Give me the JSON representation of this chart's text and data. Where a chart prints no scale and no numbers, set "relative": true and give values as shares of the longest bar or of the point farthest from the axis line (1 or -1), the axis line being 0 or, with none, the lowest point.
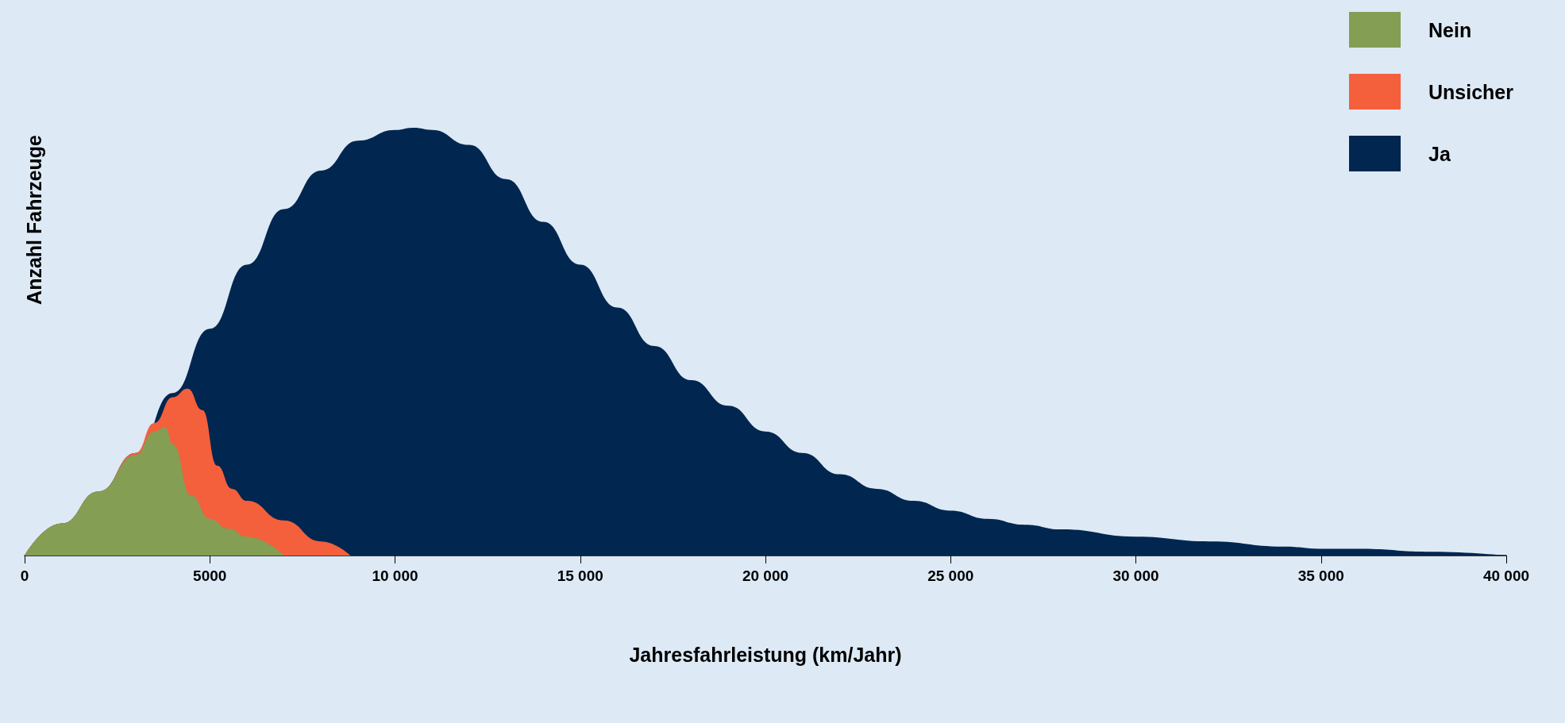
{
  "chart_data": {
    "type": "area",
    "relative": true,
    "xlabel": "Jahresfahrleistung (km/Jahr)",
    "ylabel": "Anzahl Fahrzeuge",
    "xlim": [
      0,
      40000
    ],
    "xticks": [
      0,
      5000,
      {
        "value": 10000,
        "label": "10 000"
      },
      {
        "value": 15000,
        "label": "15 000"
      },
      {
        "value": 20000,
        "label": "20 000"
      },
      {
        "value": 25000,
        "label": "25 000"
      },
      {
        "value": 30000,
        "label": "30 000"
      },
      {
        "value": 35000,
        "label": "35 000"
      },
      {
        "value": 40000,
        "label": "40 000"
      }
    ],
    "grid": false,
    "legend": "top right",
    "series": [
      {
        "name": "Nein",
        "color": "#849e54",
        "x": [
          0,
          1000,
          2000,
          3000,
          3500,
          3800,
          4000,
          4500,
          5000,
          5500,
          6000,
          7000
        ],
        "values": [
          0,
          0.075,
          0.15,
          0.235,
          0.29,
          0.3,
          0.26,
          0.14,
          0.086,
          0.063,
          0.044,
          0
        ]
      },
      {
        "name": "Unsicher",
        "color": "#f45f3c",
        "x": [
          0,
          1000,
          2000,
          3000,
          3500,
          4000,
          4400,
          4800,
          5200,
          5600,
          6000,
          7000,
          8000,
          8800
        ],
        "values": [
          0,
          0.075,
          0.15,
          0.24,
          0.31,
          0.37,
          0.39,
          0.34,
          0.21,
          0.156,
          0.128,
          0.082,
          0.033,
          0
        ]
      },
      {
        "name": "Ja",
        "color": "#01264f",
        "x": [
          0,
          1000,
          2000,
          3000,
          4000,
          5000,
          6000,
          7000,
          8000,
          9000,
          10000,
          10500,
          11000,
          12000,
          13000,
          14000,
          15000,
          16000,
          17000,
          18000,
          19000,
          20000,
          21000,
          22000,
          23000,
          24000,
          25000,
          26000,
          27000,
          28000,
          30000,
          32000,
          34000,
          35000,
          36000,
          38000,
          40000
        ],
        "values": [
          0,
          0.075,
          0.15,
          0.24,
          0.38,
          0.53,
          0.68,
          0.81,
          0.9,
          0.97,
          0.995,
          1,
          0.995,
          0.96,
          0.88,
          0.78,
          0.68,
          0.58,
          0.49,
          0.41,
          0.35,
          0.29,
          0.24,
          0.19,
          0.156,
          0.128,
          0.105,
          0.086,
          0.072,
          0.061,
          0.044,
          0.033,
          0.021,
          0.016,
          0.016,
          0.009,
          0
        ]
      }
    ]
  }
}
